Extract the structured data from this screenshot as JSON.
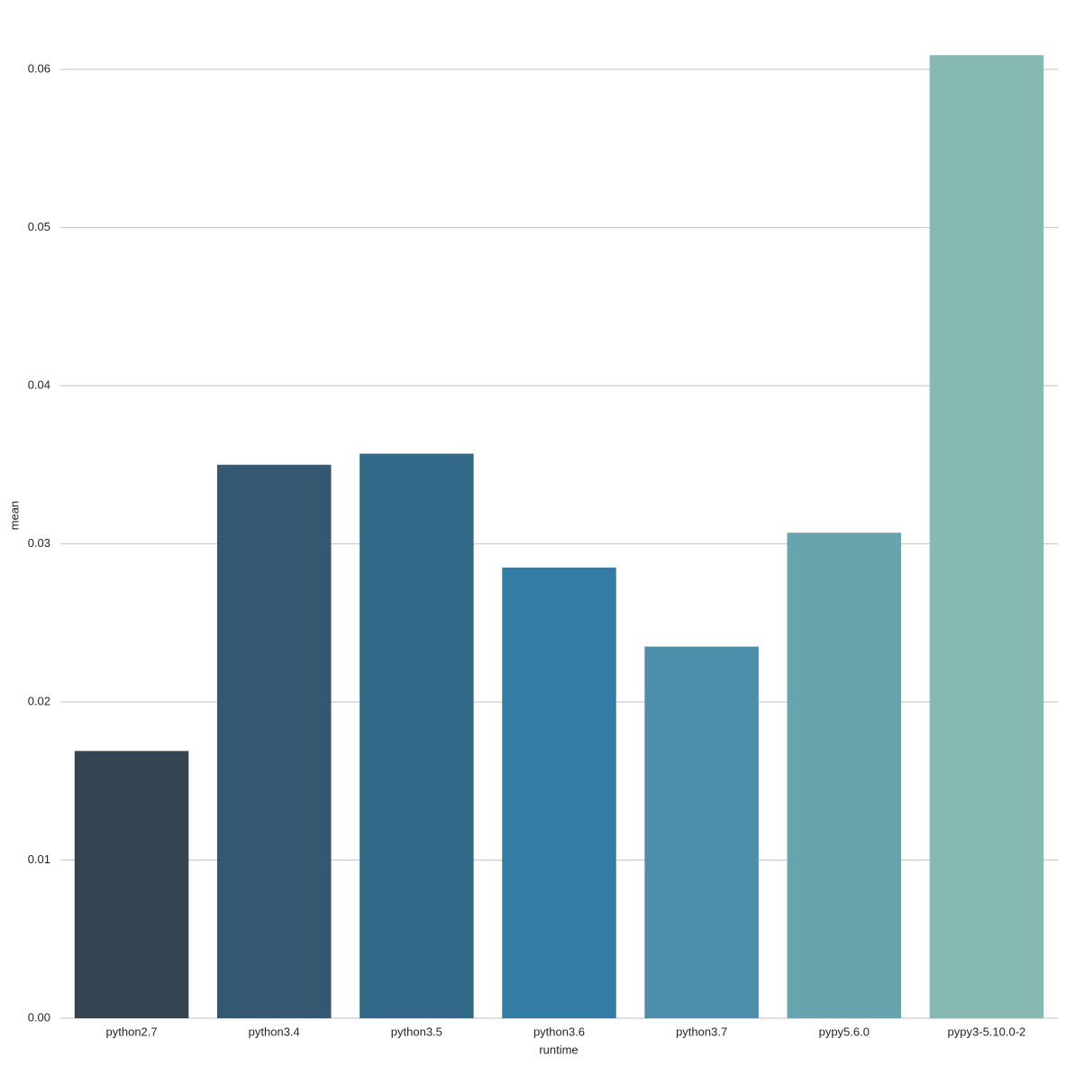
{
  "chart_data": {
    "type": "bar",
    "x_label": "runtime",
    "y_label": "mean",
    "categories": [
      "python2.7",
      "python3.4",
      "python3.5",
      "python3.6",
      "python3.7",
      "pypy5.6.0",
      "pypy3-5.10.0-2"
    ],
    "values": [
      0.0169,
      0.035,
      0.0357,
      0.0285,
      0.0235,
      0.0307,
      0.0609
    ],
    "colors": [
      "#344551",
      "#34586f",
      "#336a8a",
      "#337ca6",
      "#4d8faa",
      "#67a4ae",
      "#86b9b2"
    ],
    "ylim": [
      0,
      0.064
    ],
    "yticks": [
      {
        "value": 0,
        "label": "0.00"
      },
      0.01,
      0.02,
      0.03,
      0.04,
      0.05,
      0.06
    ],
    "grid": true
  }
}
